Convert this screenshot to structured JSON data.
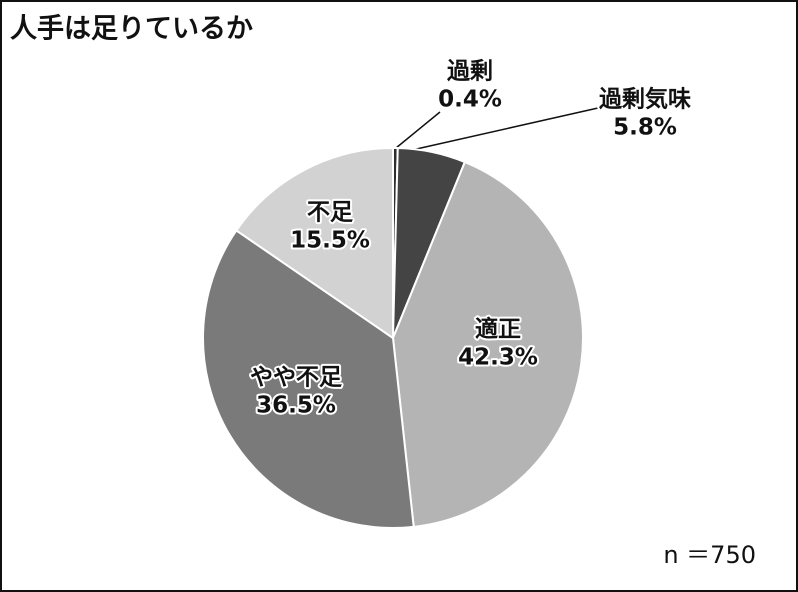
{
  "chart_data": {
    "type": "pie",
    "title": "人手は足りているか",
    "categories": [
      "過剰",
      "過剰気味",
      "適正",
      "やや不足",
      "不足"
    ],
    "values": [
      0.4,
      5.8,
      42.3,
      36.5,
      15.5
    ],
    "value_labels": [
      "0.4%",
      "5.8%",
      "42.3%",
      "36.5%",
      "15.5%"
    ],
    "colors": [
      "#2e2e2e",
      "#444444",
      "#b4b4b4",
      "#7a7a7a",
      "#d2d2d2"
    ],
    "note": "n ＝750"
  }
}
